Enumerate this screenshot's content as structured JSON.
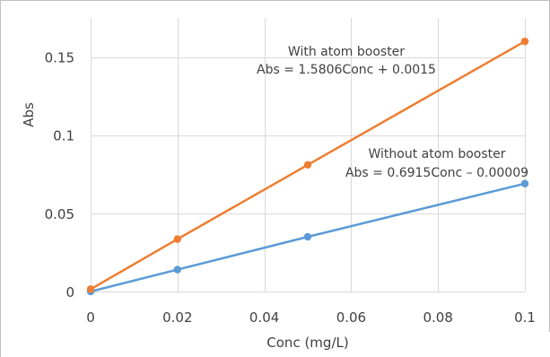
{
  "chart_data": {
    "type": "line",
    "title": "",
    "xlabel": "Conc (mg/L)",
    "ylabel": "Abs",
    "xlim": [
      0,
      0.1
    ],
    "ylim": [
      0,
      0.175
    ],
    "xticks": [
      0,
      0.02,
      0.04,
      0.06,
      0.08,
      0.1
    ],
    "xtick_labels": [
      "0",
      "0.02",
      "0.04",
      "0.06",
      "0.08",
      "0.1"
    ],
    "yticks": [
      0,
      0.05,
      0.1,
      0.15
    ],
    "ytick_labels": [
      "0",
      "0.05",
      "0.1",
      "0.15"
    ],
    "grid": true,
    "legend": "none",
    "series": [
      {
        "color": "#5b9bd5",
        "x": [
          0,
          0.02,
          0.05,
          0.1
        ],
        "y": [
          0,
          0.014,
          0.035,
          0.069
        ]
      },
      {
        "color": "#ed7d31",
        "x": [
          0,
          0.02,
          0.05,
          0.1
        ],
        "y": [
          0.0015,
          0.0335,
          0.081,
          0.16
        ]
      }
    ],
    "annotations": [
      {
        "series_index": 1,
        "line1": "With atom booster",
        "line2": "Abs = 1.5806Conc + 0.0015"
      },
      {
        "series_index": 0,
        "line1": "Without atom booster",
        "line2": "Abs = 0.6915Conc – 0.00009"
      }
    ]
  }
}
